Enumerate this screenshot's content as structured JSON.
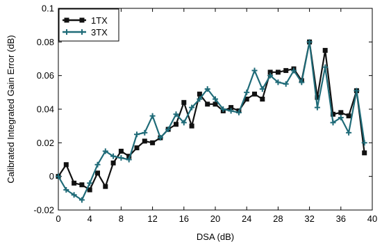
{
  "chart_data": {
    "type": "line",
    "xlabel": "DSA (dB)",
    "ylabel": "Calibrated Integrated Gain Error (dB)",
    "xlim": [
      0,
      40
    ],
    "ylim": [
      -0.02,
      0.1
    ],
    "xticks": [
      0,
      4,
      8,
      12,
      16,
      20,
      24,
      28,
      32,
      36,
      40
    ],
    "yticks": [
      -0.02,
      0,
      0.02,
      0.04,
      0.06,
      0.08,
      0.1
    ],
    "ytick_labels": [
      "-0.02",
      "0",
      "0.02",
      "0.04",
      "0.06",
      "0.08",
      "0.1"
    ],
    "grid": false,
    "legend_position": "top-left",
    "x": [
      0,
      1,
      2,
      3,
      4,
      5,
      6,
      7,
      8,
      9,
      10,
      11,
      12,
      13,
      14,
      15,
      16,
      17,
      18,
      19,
      20,
      21,
      22,
      23,
      24,
      25,
      26,
      27,
      28,
      29,
      30,
      31,
      32,
      33,
      34,
      35,
      36,
      37,
      38,
      39
    ],
    "series": [
      {
        "name": "1TX",
        "color": "#111111",
        "marker": "square",
        "values": [
          0,
          0.007,
          -0.004,
          -0.005,
          -0.008,
          0.002,
          -0.006,
          0.008,
          0.015,
          0.012,
          0.017,
          0.021,
          0.02,
          0.023,
          0.028,
          0.031,
          0.044,
          0.03,
          0.049,
          0.043,
          0.043,
          0.039,
          0.041,
          0.039,
          0.046,
          0.049,
          0.046,
          0.062,
          0.062,
          0.063,
          0.064,
          0.057,
          0.08,
          0.047,
          0.075,
          0.037,
          0.038,
          0.036,
          0.051,
          0.014
        ]
      },
      {
        "name": "3TX",
        "color": "#1f6b78",
        "marker": "plus",
        "values": [
          0,
          -0.008,
          -0.011,
          -0.014,
          -0.004,
          0.007,
          0.015,
          0.012,
          0.011,
          0.01,
          0.025,
          0.026,
          0.036,
          0.023,
          0.028,
          0.037,
          0.032,
          0.041,
          0.046,
          0.052,
          0.046,
          0.04,
          0.039,
          0.038,
          0.05,
          0.063,
          0.052,
          0.06,
          0.056,
          0.055,
          0.063,
          0.056,
          0.08,
          0.041,
          0.065,
          0.032,
          0.035,
          0.026,
          0.051,
          0.02
        ]
      }
    ]
  }
}
